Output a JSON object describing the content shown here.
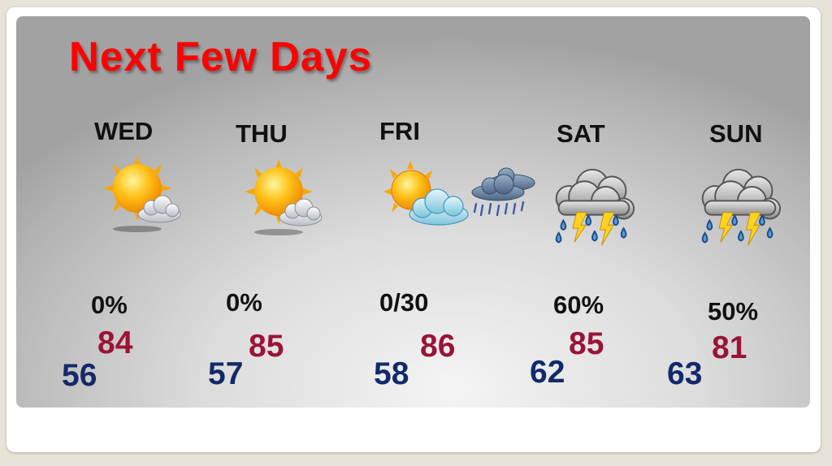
{
  "title": "Next Few Days",
  "colors": {
    "title": "#ff0000",
    "high": "#9a1438",
    "low": "#13296a"
  },
  "days": [
    {
      "name": "WED",
      "icon": "sun-with-cloud-icon",
      "precip": "0%",
      "high": "84",
      "low": "56"
    },
    {
      "name": "THU",
      "icon": "sun-with-cloud-icon",
      "precip": "0%",
      "high": "85",
      "low": "57"
    },
    {
      "name": "FRI",
      "icon": "partly-cloudy-then-rain-icon",
      "precip": "0/30",
      "high": "86",
      "low": "58"
    },
    {
      "name": "SAT",
      "icon": "thunderstorm-icon",
      "precip": "60%",
      "high": "85",
      "low": "62"
    },
    {
      "name": "SUN",
      "icon": "thunderstorm-icon",
      "precip": "50%",
      "high": "81",
      "low": "63"
    }
  ]
}
